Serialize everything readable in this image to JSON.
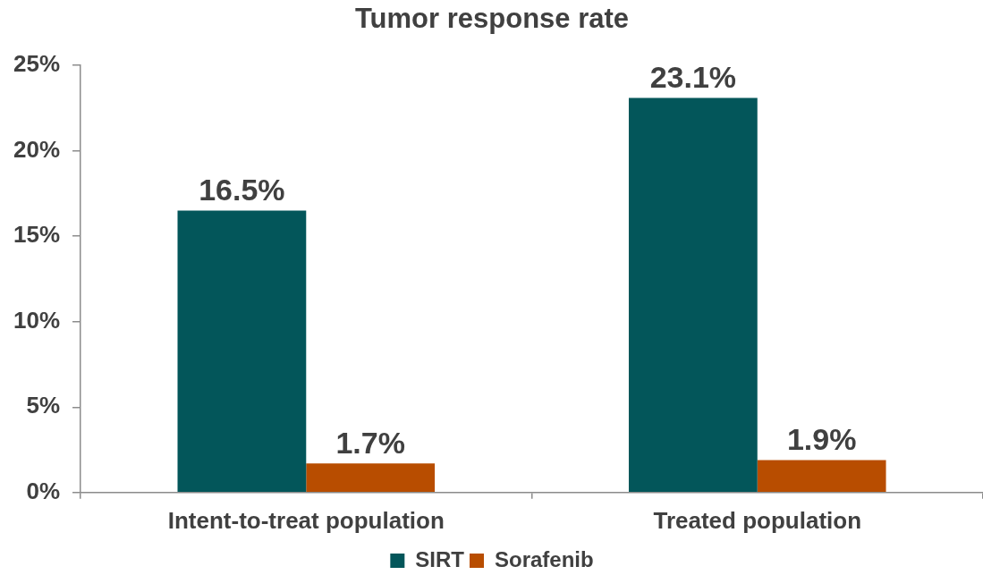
{
  "chart_data": {
    "type": "bar",
    "title": "Tumor response rate",
    "categories": [
      "Intent-to-treat population",
      "Treated population"
    ],
    "series": [
      {
        "name": "SIRT",
        "color": "#03565a",
        "values": [
          16.5,
          23.1
        ],
        "value_labels": [
          "16.5%",
          "23.1%"
        ]
      },
      {
        "name": "Sorafenib",
        "color": "#b84d00",
        "values": [
          1.7,
          1.9
        ],
        "value_labels": [
          "1.7%",
          "1.9%"
        ]
      }
    ],
    "ylim": [
      0,
      25
    ],
    "yticks": [
      {
        "value": 0,
        "label": "0%"
      },
      {
        "value": 5,
        "label": "5%"
      },
      {
        "value": 10,
        "label": "10%"
      },
      {
        "value": 15,
        "label": "15%"
      },
      {
        "value": 20,
        "label": "20%"
      },
      {
        "value": 25,
        "label": "25%"
      }
    ],
    "grid": false,
    "legend": "bottom"
  }
}
